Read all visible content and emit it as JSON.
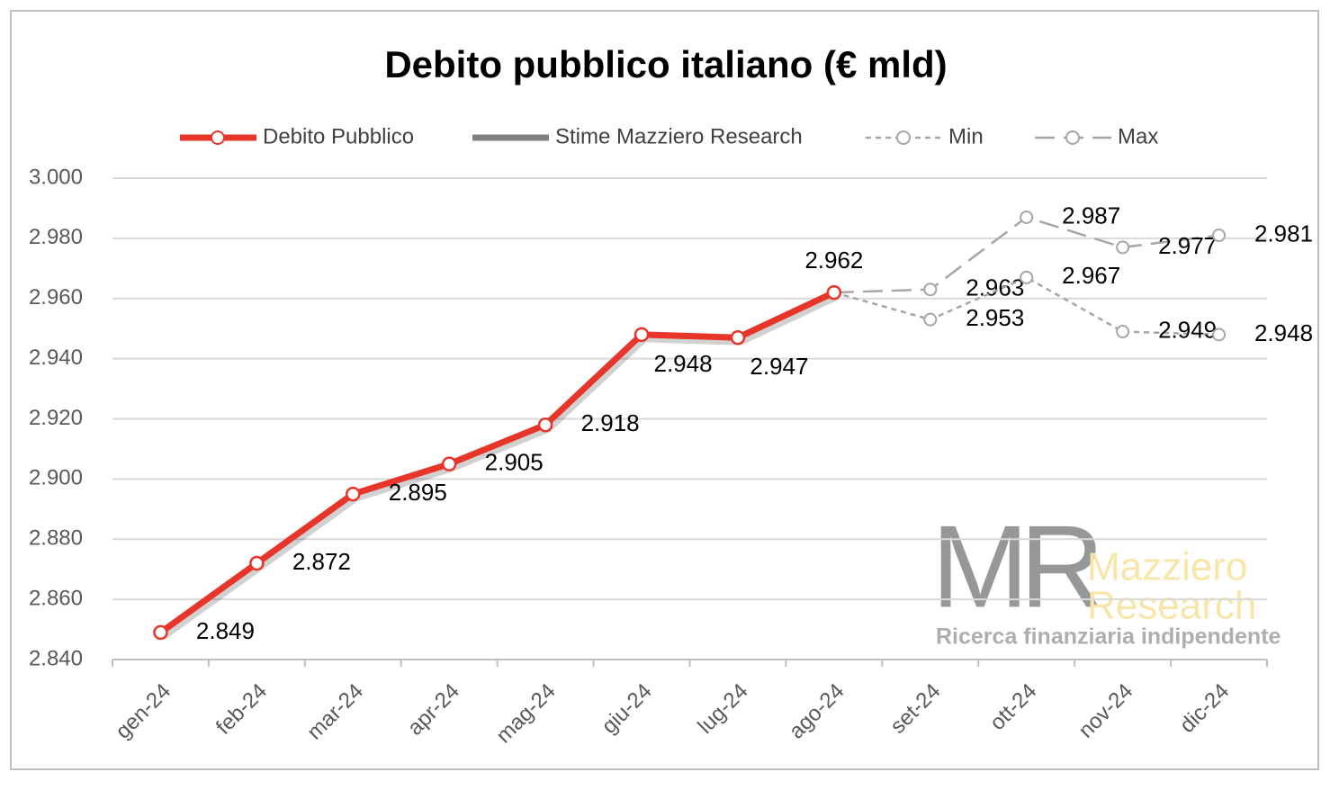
{
  "chart_data": {
    "type": "line",
    "title": "Debito pubblico italiano (€ mld)",
    "categories": [
      "gen-24",
      "feb-24",
      "mar-24",
      "apr-24",
      "mag-24",
      "giu-24",
      "lug-24",
      "ago-24",
      "set-24",
      "ott-24",
      "nov-24",
      "dic-24"
    ],
    "series": [
      {
        "name": "Debito Pubblico",
        "color": "#e8352a",
        "dash": "solid",
        "values": [
          2849,
          2872,
          2895,
          2905,
          2918,
          2948,
          2947,
          2962,
          null,
          null,
          null,
          null
        ],
        "value_labels": [
          "2.849",
          "2.872",
          "2.895",
          "2.905",
          "2.918",
          "2.948",
          "2.947",
          "2.962",
          null,
          null,
          null,
          null
        ]
      },
      {
        "name": "Stime Mazziero Research",
        "color": "#808080",
        "dash": "solid",
        "values": [
          null,
          null,
          null,
          null,
          null,
          null,
          null,
          null,
          null,
          null,
          null,
          null
        ]
      },
      {
        "name": "Min",
        "color": "#a6a6a6",
        "dash": "short",
        "values": [
          null,
          null,
          null,
          null,
          null,
          null,
          null,
          2962,
          2953,
          2967,
          2949,
          2948
        ],
        "value_labels": [
          null,
          null,
          null,
          null,
          null,
          null,
          null,
          null,
          "2.953",
          "2.967",
          "2.949",
          "2.948"
        ]
      },
      {
        "name": "Max",
        "color": "#a6a6a6",
        "dash": "long",
        "values": [
          null,
          null,
          null,
          null,
          null,
          null,
          null,
          2962,
          2963,
          2987,
          2977,
          2981
        ],
        "value_labels": [
          null,
          null,
          null,
          null,
          null,
          null,
          null,
          null,
          "2.963",
          "2.987",
          "2.977",
          "2.981"
        ]
      }
    ],
    "ylim": [
      2840,
      3000
    ],
    "yticks": [
      {
        "value": 2840,
        "label": "2.840"
      },
      {
        "value": 2860,
        "label": "2.860"
      },
      {
        "value": 2880,
        "label": "2.880"
      },
      {
        "value": 2900,
        "label": "2.900"
      },
      {
        "value": 2920,
        "label": "2.920"
      },
      {
        "value": 2940,
        "label": "2.940"
      },
      {
        "value": 2960,
        "label": "2.960"
      },
      {
        "value": 2980,
        "label": "2.980"
      },
      {
        "value": 3000,
        "label": "3.000"
      }
    ],
    "grid": true,
    "legend": "top",
    "logo": {
      "mark": "MR",
      "name_line1": "Mazziero",
      "name_line2": "Research",
      "tagline": "Ricerca finanziaria indipendente"
    }
  }
}
